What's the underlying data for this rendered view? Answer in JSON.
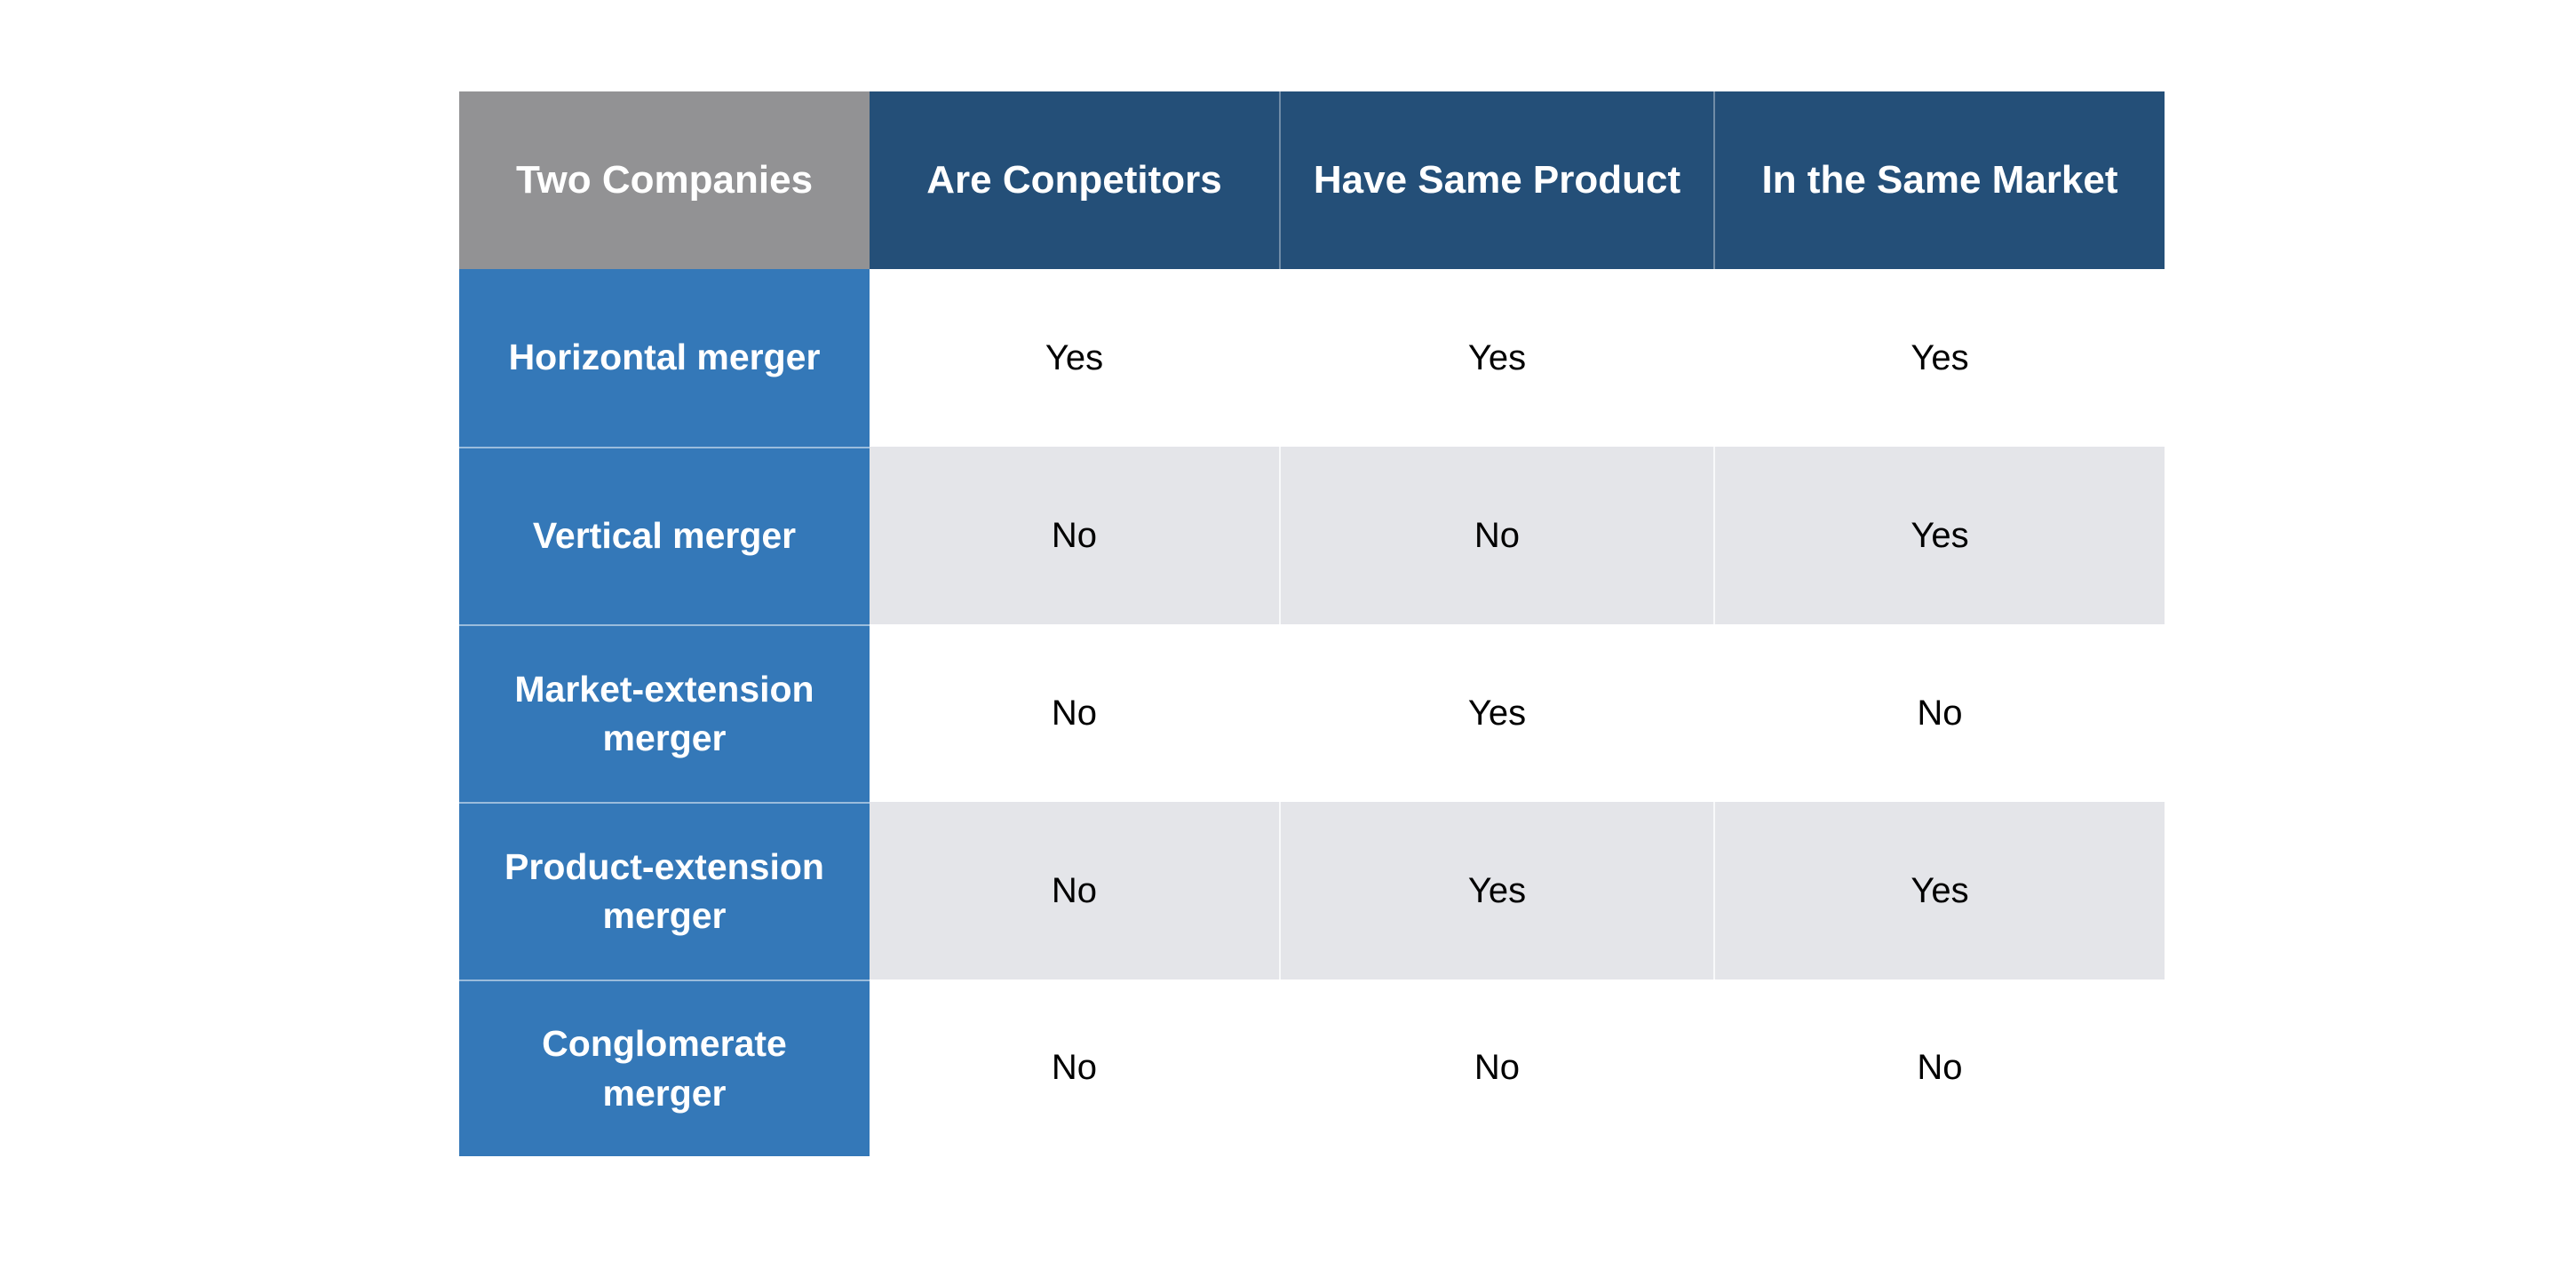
{
  "chart_data": {
    "type": "table",
    "corner_header": "Two Companies",
    "columns": [
      "Are Conpetitors",
      "Have Same Product",
      "In the Same Market"
    ],
    "rows": [
      {
        "label": "Horizontal merger",
        "values": [
          "Yes",
          "Yes",
          "Yes"
        ]
      },
      {
        "label": "Vertical merger",
        "values": [
          "No",
          "No",
          "Yes"
        ]
      },
      {
        "label": "Market-extension merger",
        "values": [
          "No",
          "Yes",
          "No"
        ]
      },
      {
        "label": "Product-extension merger",
        "values": [
          "No",
          "Yes",
          "Yes"
        ]
      },
      {
        "label": "Conglomerate merger",
        "values": [
          "No",
          "No",
          "No"
        ]
      }
    ],
    "layout_hints": {
      "header_position": "top-row",
      "label_column_position": "left",
      "body_row_striping": "white-and-light-gray-alternating"
    }
  },
  "colors": {
    "corner_bg": "#929294",
    "header_bg": "#244F78",
    "label_bg": "#3478B8",
    "row_bg": "#FFFFFF",
    "row_alt_bg": "#E4E5E9",
    "header_text": "#FFFFFF",
    "label_text": "#FFFFFF",
    "data_text": "#000000"
  }
}
